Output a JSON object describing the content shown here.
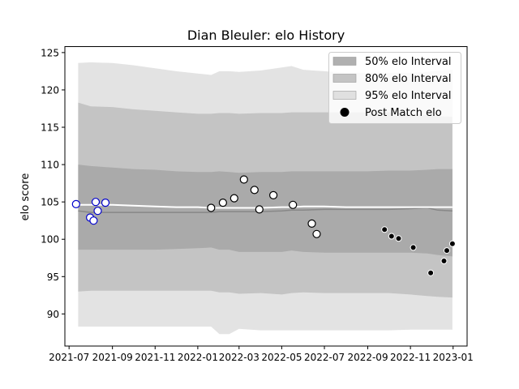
{
  "chart_data": {
    "type": "scatter",
    "title": "Dian Bleuler: elo History",
    "xlabel": "",
    "ylabel": "elo score",
    "xlim": [
      "2021-06-25",
      "2023-01-21"
    ],
    "ylim": [
      85.7,
      125.8
    ],
    "x_ticks": [
      "2021-07",
      "2021-09",
      "2021-11",
      "2022-01",
      "2022-03",
      "2022-05",
      "2022-07",
      "2022-09",
      "2022-11",
      "2023-01"
    ],
    "y_ticks": [
      90,
      95,
      100,
      105,
      110,
      115,
      120,
      125
    ],
    "grid": false,
    "legend_position": "top-right",
    "legend": [
      {
        "label": "50% elo Interval",
        "color": "#b0b0b0",
        "kind": "patch"
      },
      {
        "label": "80% elo Interval",
        "color": "#c4c4c4",
        "kind": "patch"
      },
      {
        "label": "95% elo Interval",
        "color": "#e0e0e0",
        "kind": "patch"
      },
      {
        "label": "Post Match elo",
        "color": "#000000",
        "kind": "marker"
      }
    ],
    "colors": {
      "band50": "#aaaaaa",
      "band80": "#c4c4c4",
      "band95": "#e3e3e3",
      "mean_line": "#ffffff",
      "median_line": "#888888",
      "early_marker_edge": "#0000cc",
      "mid_marker_edge": "#000000",
      "late_marker_fill": "#000000"
    },
    "bands": {
      "x": [
        "2021-07-14",
        "2021-08-01",
        "2021-09-01",
        "2021-10-01",
        "2021-11-01",
        "2021-12-01",
        "2022-01-01",
        "2022-01-20",
        "2022-02-01",
        "2022-02-15",
        "2022-03-01",
        "2022-04-01",
        "2022-05-01",
        "2022-05-15",
        "2022-06-01",
        "2022-07-01",
        "2022-08-01",
        "2022-09-01",
        "2022-10-01",
        "2022-11-01",
        "2022-11-25",
        "2022-12-10",
        "2022-12-31"
      ],
      "lo95": [
        88.3,
        88.3,
        88.3,
        88.3,
        88.3,
        88.3,
        88.3,
        88.3,
        87.3,
        87.3,
        88.0,
        87.8,
        87.8,
        87.8,
        87.8,
        87.8,
        87.8,
        87.8,
        87.8,
        87.9,
        87.9,
        87.9,
        87.9
      ],
      "hi95": [
        123.6,
        123.7,
        123.6,
        123.3,
        122.9,
        122.5,
        122.2,
        122.0,
        122.5,
        122.5,
        122.4,
        122.6,
        123.0,
        123.2,
        122.7,
        122.5,
        122.3,
        122.3,
        122.3,
        122.3,
        122.4,
        122.6,
        122.7
      ],
      "lo80": [
        93.0,
        93.1,
        93.1,
        93.1,
        93.1,
        93.1,
        93.1,
        93.1,
        92.9,
        92.9,
        92.7,
        92.8,
        92.6,
        92.8,
        92.9,
        92.8,
        92.8,
        92.8,
        92.8,
        92.6,
        92.4,
        92.3,
        92.2
      ],
      "hi80": [
        118.3,
        117.8,
        117.7,
        117.4,
        117.2,
        117.0,
        116.8,
        116.8,
        116.9,
        116.9,
        116.8,
        116.9,
        116.9,
        117.0,
        117.0,
        117.0,
        117.0,
        117.0,
        117.0,
        116.8,
        116.6,
        116.5,
        116.4
      ],
      "lo50": [
        98.6,
        98.6,
        98.6,
        98.6,
        98.6,
        98.7,
        98.8,
        98.9,
        98.6,
        98.6,
        98.3,
        98.3,
        98.3,
        98.5,
        98.3,
        98.2,
        98.2,
        98.2,
        98.2,
        98.2,
        98.1,
        97.9,
        97.7
      ],
      "hi50": [
        110.0,
        109.8,
        109.6,
        109.4,
        109.3,
        109.1,
        109.0,
        109.0,
        109.1,
        109.0,
        108.9,
        109.0,
        109.0,
        109.1,
        109.1,
        109.1,
        109.1,
        109.1,
        109.2,
        109.2,
        109.3,
        109.4,
        109.4
      ],
      "mean": [
        104.6,
        104.6,
        104.6,
        104.5,
        104.4,
        104.3,
        104.3,
        104.2,
        104.2,
        104.2,
        104.2,
        104.2,
        104.3,
        104.3,
        104.4,
        104.4,
        104.3,
        104.3,
        104.3,
        104.3,
        104.3,
        104.3,
        104.3
      ],
      "median": [
        103.8,
        103.6,
        103.6,
        103.6,
        103.6,
        103.6,
        103.6,
        103.6,
        103.7,
        103.7,
        103.7,
        103.7,
        103.8,
        103.9,
        103.9,
        104.0,
        104.0,
        104.0,
        104.0,
        104.1,
        104.2,
        103.9,
        103.8
      ]
    },
    "series": [
      {
        "name": "Post Match elo",
        "style": "early",
        "x": [
          "2021-07-11",
          "2021-07-31",
          "2021-08-05",
          "2021-08-08",
          "2021-08-11",
          "2021-08-22"
        ],
        "y": [
          104.7,
          102.9,
          102.5,
          105.0,
          103.8,
          104.9
        ]
      },
      {
        "name": "Post Match elo",
        "style": "mid",
        "x": [
          "2022-01-20",
          "2022-02-06",
          "2022-02-22",
          "2022-03-08",
          "2022-03-23",
          "2022-03-30",
          "2022-04-19",
          "2022-05-17",
          "2022-06-13",
          "2022-06-20"
        ],
        "y": [
          104.2,
          104.9,
          105.5,
          108.0,
          106.6,
          104.0,
          105.9,
          104.6,
          102.1,
          100.7
        ]
      },
      {
        "name": "Post Match elo",
        "style": "late",
        "x": [
          "2022-09-25",
          "2022-10-05",
          "2022-10-15",
          "2022-11-05",
          "2022-11-30",
          "2022-12-19",
          "2022-12-23",
          "2022-12-31"
        ],
        "y": [
          101.3,
          100.4,
          100.1,
          98.9,
          95.5,
          97.1,
          98.5,
          99.4
        ]
      }
    ]
  }
}
